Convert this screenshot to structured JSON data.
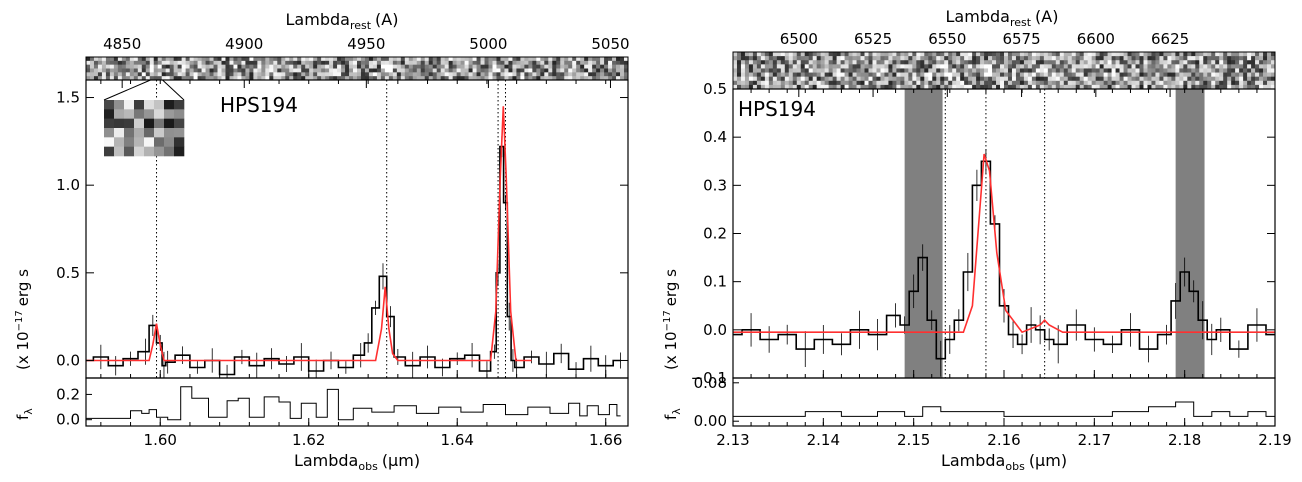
{
  "colors": {
    "data": "#000000",
    "model": "#ff3030",
    "mask": "#808080",
    "background": "#ffffff"
  },
  "chart_data": [
    {
      "type": "line",
      "panel": "left",
      "annotation": "HPS194",
      "xlabel": "Lambda",
      "xlabel_sub": "obs",
      "xlabel_unit": "(μm)",
      "top_xlabel": "Lambda",
      "top_xlabel_sub": "rest",
      "top_xlabel_unit": "(A)",
      "ylabel_main": "(x 10",
      "ylabel_exp": "−17",
      "ylabel_rest": "erg s",
      "ylabel_lower": "f",
      "ylabel_lower_sub": "λ",
      "xlim": [
        1.59,
        1.663
      ],
      "ylim": [
        -0.1,
        1.6
      ],
      "xticks": [
        1.6,
        1.62,
        1.64,
        1.66
      ],
      "xtick_labels": [
        "1.60",
        "1.62",
        "1.64",
        "1.66"
      ],
      "top_xticks": [
        4850,
        4900,
        4950,
        5000,
        5050
      ],
      "top_xtick_labels": [
        "4850",
        "4900",
        "4950",
        "5000",
        "5050"
      ],
      "yticks": [
        0.0,
        0.5,
        1.0,
        1.5
      ],
      "ytick_labels": [
        "0.0",
        "0.5",
        "1.0",
        "1.5"
      ],
      "lower_ylim": [
        -0.05,
        0.33
      ],
      "lower_yticks": [
        0.0,
        0.2
      ],
      "lower_ytick_labels": [
        "0.0",
        "0.2"
      ],
      "vlines": [
        1.5995,
        1.6305,
        1.6455,
        1.6465
      ],
      "series": [
        {
          "role": "data",
          "x": [
            1.59,
            1.592,
            1.594,
            1.596,
            1.598,
            1.599,
            1.6,
            1.6005,
            1.601,
            1.603,
            1.605,
            1.607,
            1.609,
            1.611,
            1.613,
            1.615,
            1.617,
            1.619,
            1.621,
            1.623,
            1.625,
            1.627,
            1.628,
            1.629,
            1.63,
            1.631,
            1.632,
            1.634,
            1.636,
            1.638,
            1.64,
            1.642,
            1.644,
            1.645,
            1.6455,
            1.646,
            1.6465,
            1.647,
            1.6475,
            1.648,
            1.65,
            1.652,
            1.654,
            1.656,
            1.658,
            1.66,
            1.662
          ],
          "y": [
            0.0,
            0.02,
            -0.03,
            0.01,
            0.05,
            0.2,
            0.1,
            -0.03,
            -0.01,
            0.03,
            -0.04,
            0.0,
            -0.08,
            0.02,
            -0.03,
            0.01,
            -0.02,
            0.02,
            -0.06,
            0.0,
            -0.04,
            0.03,
            0.1,
            0.3,
            0.48,
            0.25,
            0.02,
            -0.03,
            0.02,
            -0.04,
            0.01,
            0.03,
            -0.06,
            0.05,
            0.5,
            1.22,
            0.9,
            0.25,
            0.0,
            -0.04,
            0.02,
            -0.02,
            0.04,
            -0.05,
            0.01,
            -0.03,
            0.0
          ]
        },
        {
          "role": "model",
          "x": [
            1.59,
            1.5985,
            1.599,
            1.5995,
            1.6,
            1.6005,
            1.601,
            1.629,
            1.6298,
            1.6303,
            1.6308,
            1.6313,
            1.632,
            1.6445,
            1.6452,
            1.6458,
            1.6462,
            1.6466,
            1.6472,
            1.6479,
            1.65
          ],
          "y": [
            0.0,
            0.0,
            0.09,
            0.21,
            0.09,
            0.0,
            0.0,
            0.0,
            0.18,
            0.42,
            0.18,
            0.04,
            0.0,
            0.0,
            0.28,
            1.05,
            1.45,
            1.05,
            0.28,
            0.0,
            0.0
          ]
        },
        {
          "role": "sky",
          "x": [
            1.59,
            1.595,
            1.597,
            1.598,
            1.599,
            1.6,
            1.602,
            1.6035,
            1.605,
            1.608,
            1.61,
            1.611,
            1.613,
            1.615,
            1.617,
            1.618,
            1.62,
            1.622,
            1.623,
            1.625,
            1.627,
            1.63,
            1.633,
            1.636,
            1.639,
            1.642,
            1.645,
            1.648,
            1.651,
            1.654,
            1.656,
            1.657,
            1.658,
            1.66,
            1.661,
            1.662
          ],
          "y": [
            0.01,
            0.01,
            0.07,
            0.05,
            0.08,
            0.02,
            0.0,
            0.26,
            0.17,
            0.02,
            0.15,
            0.17,
            0.02,
            0.18,
            0.14,
            0.01,
            0.13,
            0.02,
            0.24,
            0.0,
            0.09,
            0.06,
            0.11,
            0.05,
            0.1,
            0.06,
            0.12,
            0.04,
            0.1,
            0.05,
            0.13,
            0.03,
            0.11,
            0.04,
            0.12,
            0.03
          ]
        }
      ]
    },
    {
      "type": "line",
      "panel": "right",
      "annotation": "HPS194",
      "xlabel": "Lambda",
      "xlabel_sub": "obs",
      "xlabel_unit": "(μm)",
      "top_xlabel": "Lambda",
      "top_xlabel_sub": "rest",
      "top_xlabel_unit": "(A)",
      "ylabel_main": "(x 10",
      "ylabel_exp": "−17",
      "ylabel_rest": "erg s",
      "ylabel_lower": "f",
      "ylabel_lower_sub": "λ",
      "xlim": [
        2.13,
        2.19
      ],
      "ylim": [
        -0.1,
        0.5
      ],
      "xticks": [
        2.13,
        2.14,
        2.15,
        2.16,
        2.17,
        2.18,
        2.19
      ],
      "xtick_labels": [
        "2.13",
        "2.14",
        "2.15",
        "2.16",
        "2.17",
        "2.18",
        "2.19"
      ],
      "top_xticks": [
        6500,
        6525,
        6550,
        6575,
        6600,
        6625
      ],
      "top_xtick_labels": [
        "6500",
        "6525",
        "6550",
        "6575",
        "6600",
        "6625"
      ],
      "yticks": [
        -0.1,
        0.0,
        0.1,
        0.2,
        0.3,
        0.4,
        0.5
      ],
      "ytick_labels": [
        "−0.1",
        "0.0",
        "0.1",
        "0.2",
        "0.3",
        "0.4",
        "0.5"
      ],
      "lower_ylim": [
        -0.01,
        0.09
      ],
      "lower_yticks": [
        0.0,
        0.08
      ],
      "lower_ytick_labels": [
        "0.00",
        "0.08"
      ],
      "vlines": [
        2.1535,
        2.158,
        2.1645
      ],
      "shaded": [
        [
          2.149,
          2.1532
        ],
        [
          2.179,
          2.1822
        ]
      ],
      "series": [
        {
          "role": "data",
          "x": [
            2.13,
            2.132,
            2.134,
            2.136,
            2.138,
            2.14,
            2.142,
            2.144,
            2.146,
            2.148,
            2.149,
            2.15,
            2.151,
            2.152,
            2.153,
            2.154,
            2.155,
            2.156,
            2.157,
            2.158,
            2.159,
            2.16,
            2.161,
            2.162,
            2.163,
            2.164,
            2.165,
            2.166,
            2.168,
            2.17,
            2.172,
            2.174,
            2.176,
            2.178,
            2.179,
            2.18,
            2.181,
            2.182,
            2.183,
            2.184,
            2.186,
            2.188,
            2.19
          ],
          "y": [
            -0.01,
            0.0,
            -0.02,
            -0.01,
            -0.04,
            -0.02,
            -0.03,
            0.0,
            -0.01,
            0.03,
            0.01,
            0.08,
            0.15,
            0.02,
            -0.06,
            -0.02,
            0.02,
            0.12,
            0.3,
            0.35,
            0.22,
            0.05,
            -0.01,
            -0.03,
            0.01,
            0.0,
            -0.02,
            -0.03,
            0.01,
            -0.02,
            -0.03,
            0.0,
            -0.04,
            -0.01,
            0.06,
            0.12,
            0.08,
            0.02,
            -0.02,
            0.0,
            -0.04,
            0.01,
            -0.01
          ]
        },
        {
          "role": "model",
          "x": [
            2.13,
            2.1555,
            2.1565,
            2.1572,
            2.1578,
            2.1584,
            2.1592,
            2.1602,
            2.162,
            2.164,
            2.1645,
            2.165,
            2.1665,
            2.19
          ],
          "y": [
            -0.005,
            -0.005,
            0.05,
            0.22,
            0.365,
            0.33,
            0.16,
            0.04,
            -0.005,
            0.01,
            0.02,
            0.01,
            -0.005,
            -0.005
          ]
        },
        {
          "role": "sky",
          "x": [
            2.13,
            2.136,
            2.14,
            2.144,
            2.148,
            2.15,
            2.152,
            2.154,
            2.158,
            2.162,
            2.166,
            2.17,
            2.174,
            2.178,
            2.18,
            2.182,
            2.184,
            2.186,
            2.188,
            2.19
          ],
          "y": [
            0.01,
            0.01,
            0.02,
            0.01,
            0.02,
            0.01,
            0.03,
            0.02,
            0.02,
            0.01,
            0.01,
            0.01,
            0.02,
            0.03,
            0.04,
            0.01,
            0.02,
            0.01,
            0.02,
            0.01
          ]
        }
      ]
    }
  ]
}
